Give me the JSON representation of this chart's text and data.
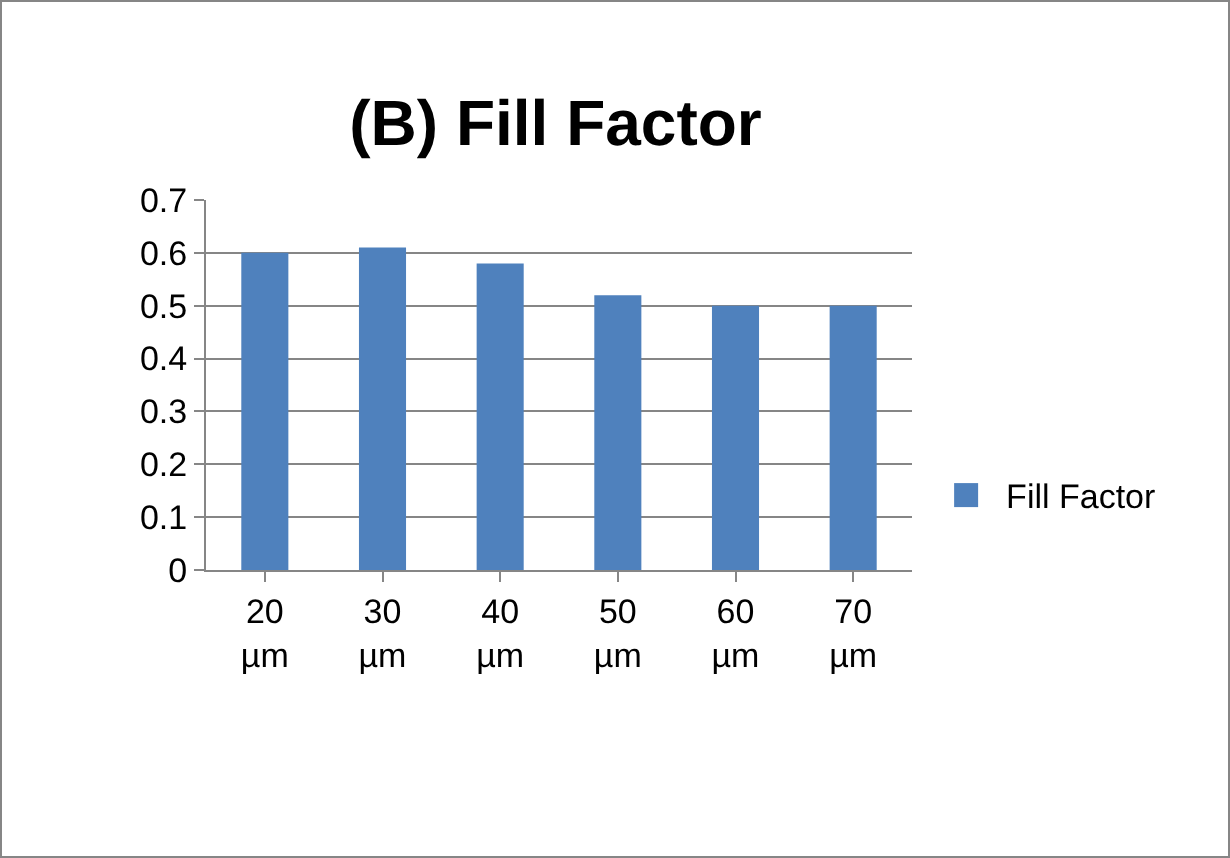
{
  "chart_data": {
    "type": "bar",
    "title": "(B) Fill Factor",
    "categories": [
      "20 µm",
      "30 µm",
      "40 µm",
      "50 µm",
      "60 µm",
      "70 µm"
    ],
    "series": [
      {
        "name": "Fill Factor",
        "color": "#4f81bd",
        "values": [
          0.6,
          0.61,
          0.58,
          0.52,
          0.5,
          0.5
        ]
      }
    ],
    "ylim": [
      0,
      0.7
    ],
    "yticks": [
      0,
      0.1,
      0.2,
      0.3,
      0.4,
      0.5,
      0.6,
      0.7
    ],
    "grid": "y",
    "legend": "right"
  }
}
